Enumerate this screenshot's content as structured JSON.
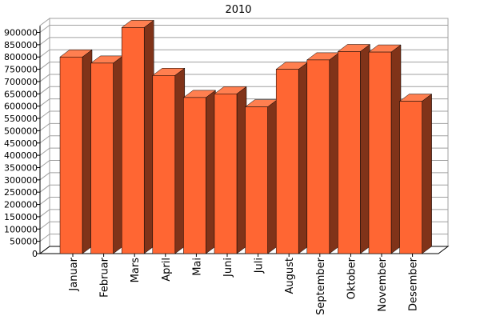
{
  "chart_data": {
    "type": "bar",
    "title": "2010",
    "categories": [
      "Januar",
      "Februar",
      "Mars",
      "April",
      "Mai",
      "Juni",
      "Juli",
      "August",
      "September",
      "Oktober",
      "November",
      "Desember"
    ],
    "values": [
      800000,
      775000,
      920000,
      725000,
      635000,
      650000,
      597000,
      750000,
      788000,
      822000,
      820000,
      620000
    ],
    "xlabel": "",
    "ylabel": "",
    "ylim": [
      0,
      900000
    ],
    "yticks": [
      0,
      50000,
      100000,
      150000,
      200000,
      250000,
      300000,
      350000,
      400000,
      450000,
      500000,
      550000,
      600000,
      650000,
      700000,
      750000,
      800000,
      850000,
      900000
    ],
    "ytick_labels": [
      "0",
      "50000",
      "100000",
      "150000",
      "200000",
      "250000",
      "300000",
      "350000",
      "400000",
      "450000",
      "500000",
      "550000",
      "600000",
      "650000",
      "700000",
      "750000",
      "800000",
      "850000",
      "900000"
    ],
    "grid": true,
    "style": "3d",
    "colors": {
      "bar_front": "#ff6633",
      "bar_top": "#ff7f50",
      "bar_side": "#803319",
      "grid": "#a0a0a0"
    }
  }
}
